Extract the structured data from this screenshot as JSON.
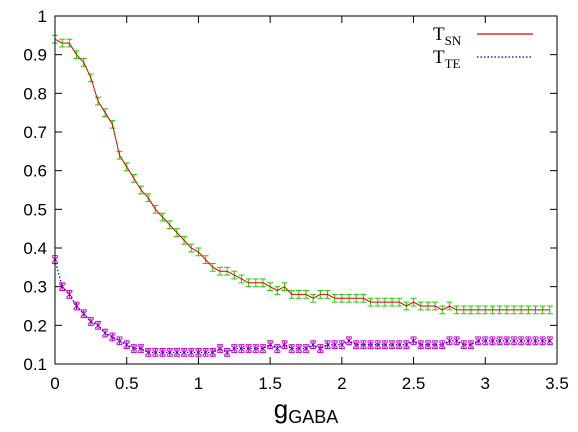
{
  "chart_data": {
    "type": "line",
    "xlabel": {
      "main": "g",
      "sub": "GABA"
    },
    "xlim": [
      0,
      3.5
    ],
    "ylim": [
      0.1,
      1.0
    ],
    "xticks": [
      "0",
      "0.5",
      "1",
      "1.5",
      "2",
      "2.5",
      "3",
      "3.5"
    ],
    "yticks": [
      "0.1",
      "0.2",
      "0.3",
      "0.4",
      "0.5",
      "0.6",
      "0.7",
      "0.8",
      "0.9",
      "1"
    ],
    "grid": false,
    "legend_position": "top-right",
    "series": [
      {
        "name": "T_SN",
        "name_main": "T",
        "name_sub": "SN",
        "line_color": "#e00000",
        "line_style": "solid",
        "marker_color": "#22cc00",
        "marker": "errorbar",
        "x": [
          0,
          0.05,
          0.1,
          0.15,
          0.2,
          0.25,
          0.3,
          0.35,
          0.4,
          0.45,
          0.5,
          0.55,
          0.6,
          0.65,
          0.7,
          0.75,
          0.8,
          0.85,
          0.9,
          0.95,
          1.0,
          1.05,
          1.1,
          1.15,
          1.2,
          1.25,
          1.3,
          1.35,
          1.4,
          1.45,
          1.5,
          1.55,
          1.6,
          1.65,
          1.7,
          1.75,
          1.8,
          1.85,
          1.9,
          1.95,
          2.0,
          2.05,
          2.1,
          2.15,
          2.2,
          2.25,
          2.3,
          2.35,
          2.4,
          2.45,
          2.5,
          2.55,
          2.6,
          2.65,
          2.7,
          2.75,
          2.8,
          2.85,
          2.9,
          2.95,
          3.0,
          3.05,
          3.1,
          3.15,
          3.2,
          3.25,
          3.3,
          3.35,
          3.4,
          3.45
        ],
        "y": [
          0.94,
          0.93,
          0.93,
          0.9,
          0.88,
          0.84,
          0.78,
          0.75,
          0.72,
          0.64,
          0.61,
          0.58,
          0.55,
          0.53,
          0.5,
          0.48,
          0.46,
          0.44,
          0.42,
          0.4,
          0.39,
          0.37,
          0.35,
          0.34,
          0.34,
          0.33,
          0.32,
          0.31,
          0.31,
          0.31,
          0.3,
          0.29,
          0.3,
          0.28,
          0.28,
          0.28,
          0.27,
          0.28,
          0.28,
          0.27,
          0.27,
          0.27,
          0.27,
          0.27,
          0.26,
          0.26,
          0.26,
          0.26,
          0.26,
          0.25,
          0.26,
          0.25,
          0.25,
          0.25,
          0.24,
          0.25,
          0.24,
          0.24,
          0.24,
          0.24,
          0.24,
          0.24,
          0.24,
          0.24,
          0.24,
          0.24,
          0.24,
          0.24,
          0.24,
          0.24
        ],
        "error": 0.01
      },
      {
        "name": "T_TE",
        "name_main": "T",
        "name_sub": "TE",
        "line_color": "#0000cc",
        "line_style": "dotted",
        "marker_color": "#cc00cc",
        "marker": "cross-errorbar",
        "x": [
          0,
          0.05,
          0.1,
          0.15,
          0.2,
          0.25,
          0.3,
          0.35,
          0.4,
          0.45,
          0.5,
          0.55,
          0.6,
          0.65,
          0.7,
          0.75,
          0.8,
          0.85,
          0.9,
          0.95,
          1.0,
          1.05,
          1.1,
          1.15,
          1.2,
          1.25,
          1.3,
          1.35,
          1.4,
          1.45,
          1.5,
          1.55,
          1.6,
          1.65,
          1.7,
          1.75,
          1.8,
          1.85,
          1.9,
          1.95,
          2.0,
          2.05,
          2.1,
          2.15,
          2.2,
          2.25,
          2.3,
          2.35,
          2.4,
          2.45,
          2.5,
          2.55,
          2.6,
          2.65,
          2.7,
          2.75,
          2.8,
          2.85,
          2.9,
          2.95,
          3.0,
          3.05,
          3.1,
          3.15,
          3.2,
          3.25,
          3.3,
          3.35,
          3.4,
          3.45
        ],
        "y": [
          0.37,
          0.3,
          0.28,
          0.25,
          0.23,
          0.21,
          0.2,
          0.18,
          0.17,
          0.16,
          0.15,
          0.14,
          0.14,
          0.13,
          0.13,
          0.13,
          0.13,
          0.13,
          0.13,
          0.13,
          0.13,
          0.13,
          0.13,
          0.14,
          0.13,
          0.14,
          0.14,
          0.14,
          0.14,
          0.14,
          0.15,
          0.14,
          0.15,
          0.14,
          0.14,
          0.14,
          0.15,
          0.14,
          0.15,
          0.15,
          0.15,
          0.16,
          0.15,
          0.15,
          0.15,
          0.15,
          0.15,
          0.15,
          0.15,
          0.15,
          0.16,
          0.15,
          0.15,
          0.15,
          0.15,
          0.16,
          0.16,
          0.15,
          0.15,
          0.16,
          0.16,
          0.16,
          0.16,
          0.16,
          0.16,
          0.16,
          0.16,
          0.16,
          0.16,
          0.16
        ],
        "error": 0.01
      }
    ]
  }
}
